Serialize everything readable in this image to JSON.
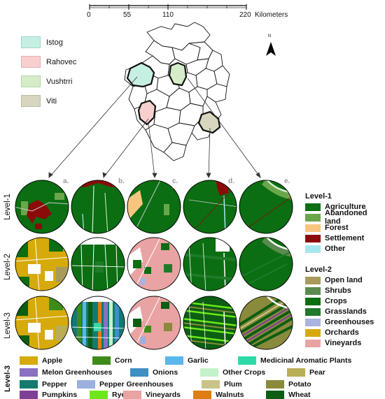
{
  "scalebar": {
    "ticks": [
      "0",
      "55",
      "110",
      "220"
    ],
    "unit": "Kilometers"
  },
  "north_label": "N",
  "regions": [
    {
      "label": "Istog",
      "color": "#c6efe4"
    },
    {
      "label": "Rahovec",
      "color": "#f7cfcf"
    },
    {
      "label": "Vushtrri",
      "color": "#d6ecc9"
    },
    {
      "label": "Viti",
      "color": "#d9d6bf"
    }
  ],
  "circle_letters": [
    "a.",
    "b.",
    "c.",
    "d.",
    "e."
  ],
  "row_labels": [
    "Level-1",
    "Level-2",
    "Level-3"
  ],
  "legend_level1": {
    "title": "Level-1",
    "items": [
      {
        "label": "Agriculture",
        "color": "#0b6e12"
      },
      {
        "label": "Abandoned land",
        "color": "#6aa64a"
      },
      {
        "label": "Forest",
        "color": "#f7c57f"
      },
      {
        "label": "Settlement",
        "color": "#8b0a0a"
      },
      {
        "label": "Other",
        "color": "#a8e6ef"
      }
    ]
  },
  "legend_level2": {
    "title": "Level-2",
    "items": [
      {
        "label": "Open land",
        "color": "#a89b5a"
      },
      {
        "label": "Shrubs",
        "color": "#5b8a4e"
      },
      {
        "label": "Crops",
        "color": "#0b6e12"
      },
      {
        "label": "Grasslands",
        "color": "#1f7a2a"
      },
      {
        "label": "Greenhouses",
        "color": "#a9b4e0"
      },
      {
        "label": "Orchards",
        "color": "#d6aa0a"
      },
      {
        "label": "Vineyards",
        "color": "#eaa3a3"
      }
    ]
  },
  "legend_level3": {
    "title": "Level-3",
    "items": [
      {
        "label": "Apple",
        "color": "#d6aa0a"
      },
      {
        "label": "Corn",
        "color": "#3d8c1a"
      },
      {
        "label": "Garlic",
        "color": "#5ab6ec"
      },
      {
        "label": "Medicinal Aromatic Plants",
        "color": "#2ed9a8"
      },
      {
        "label": "Melon Greenhouses",
        "color": "#8a6fc2"
      },
      {
        "label": "Onions",
        "color": "#3d8fc4"
      },
      {
        "label": "Other Crops",
        "color": "#c4f2c8"
      },
      {
        "label": "Pear",
        "color": "#b9ad55"
      },
      {
        "label": "Pepper",
        "color": "#137a70"
      },
      {
        "label": "Pepper Greenhouses",
        "color": "#9bb0df"
      },
      {
        "label": "Plum",
        "color": "#c8c48a"
      },
      {
        "label": "Potato",
        "color": "#8a8a3c"
      },
      {
        "label": "Pumpkins",
        "color": "#7e3f96"
      },
      {
        "label": "Rye",
        "color": "#6ce81a"
      },
      {
        "label": "Vineyards",
        "color": "#eaa3a3"
      },
      {
        "label": "Walnuts",
        "color": "#e07c14"
      },
      {
        "label": "Wheat",
        "color": "#0b5e12"
      }
    ]
  }
}
